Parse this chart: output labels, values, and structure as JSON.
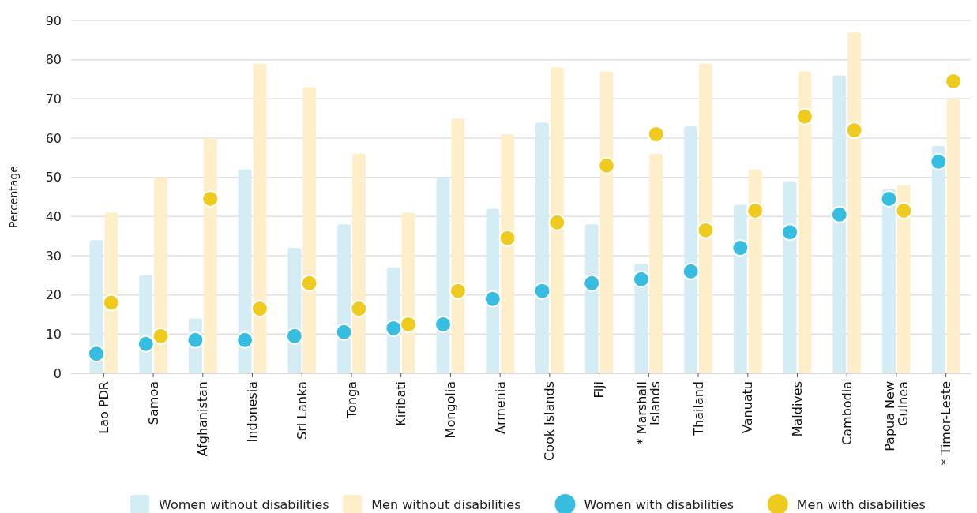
{
  "chart_data": {
    "type": "bar",
    "ylabel": "Percentage",
    "categories": [
      "Lao PDR",
      "Samoa",
      "Afghanistan",
      "Indonesia",
      "Sri Lanka",
      "Tonga",
      "Kiribati",
      "Mongolia",
      "Armenia",
      "Cook Islands",
      "Fiji",
      "* Marshall Islands",
      "Thailand",
      "Vanuatu",
      "Maldives",
      "Cambodia",
      "Papua New Guinea",
      "* Timor-Leste"
    ],
    "series": [
      {
        "name": "Women without disabilities",
        "color": "#d4edf4",
        "values": [
          34,
          25,
          14,
          52,
          32,
          38,
          27,
          50,
          42,
          64,
          38,
          28,
          63,
          43,
          49,
          76,
          47,
          58
        ]
      },
      {
        "name": "Men without disabilities",
        "color": "#feeeca",
        "values": [
          41,
          50,
          60,
          79,
          73,
          56,
          41,
          65,
          61,
          78,
          77,
          56,
          79,
          52,
          77,
          87,
          48,
          70
        ]
      },
      {
        "name": "Women with disabilities",
        "type": "scatter",
        "color": "#36bde0",
        "marker": "circle",
        "values": [
          5,
          7.5,
          8.5,
          8.5,
          9.5,
          10.5,
          11.5,
          12.5,
          19,
          21,
          23,
          24,
          26,
          32,
          36,
          40.5,
          44.5,
          54
        ]
      },
      {
        "name": "Men with disabilities",
        "type": "scatter",
        "color": "#f0cb1f",
        "marker": "circle",
        "values": [
          18,
          9.5,
          44.5,
          16.5,
          23,
          16.5,
          12.5,
          21,
          34.5,
          38.5,
          53,
          61,
          36.5,
          41.5,
          65.5,
          62,
          41.5,
          74.5
        ]
      }
    ],
    "ylim": [
      0,
      90
    ],
    "yticks": [
      0,
      10,
      20,
      30,
      40,
      50,
      60,
      70,
      80,
      90
    ],
    "grid": "y",
    "legend": "bottom"
  }
}
